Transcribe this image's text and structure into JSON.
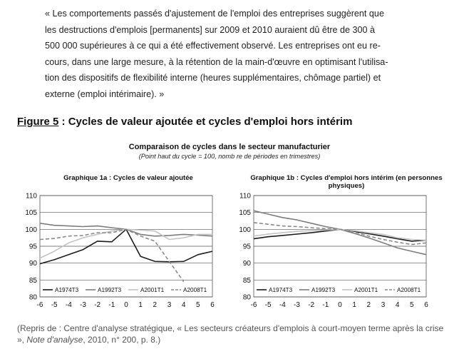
{
  "quote": {
    "lines": [
      "« Les comportements passés d'ajustement de l'emploi des entreprises suggèrent que",
      "les destructions d'emplois [permanents] sur 2009 et 2010 auraient dû être de 300 à",
      "500 000 supérieures à ce qui a été effectivement observé. Les entreprises ont eu re-",
      "cours, dans une large mesure, à la rétention de la main-d'œuvre en optimisant l'utilisa-",
      "tion des dispositifs de flexibilité interne (heures supplémentaires, chômage partiel) et",
      "externe (emploi intérimaire). »"
    ]
  },
  "figure": {
    "label": "Figure 5",
    "title": " : Cycles de valeur ajoutée et cycles d'emploi hors intérim"
  },
  "section": {
    "title": "Comparaison de cycles dans le secteur manufacturier",
    "subtitle": "(Point haut du cycle = 100, nomb re de périodes en trimestres)"
  },
  "colors": {
    "A1974T3": "#1c1c1c",
    "A1992T3": "#7d7d7d",
    "A2001T1": "#c4c4c4",
    "A2008T1": "#8a8a8a"
  },
  "chart_data": [
    {
      "type": "line",
      "title": "Graphique 1a : Cycles de valeur ajoutée",
      "x": [
        -6,
        -5,
        -4,
        -3,
        -2,
        -1,
        0,
        1,
        2,
        3,
        4,
        5,
        6
      ],
      "xlim": [
        -6,
        6
      ],
      "ylim": [
        80,
        110
      ],
      "yticks": [
        80,
        85,
        90,
        95,
        100,
        105,
        110
      ],
      "grid": true,
      "legend": "bottom",
      "series": [
        {
          "name": "A1974T3",
          "dash": "solid",
          "values": [
            89.8,
            91,
            92.5,
            94,
            96.5,
            96.3,
            100,
            92,
            90.5,
            90.4,
            90.5,
            92.5,
            93.5
          ]
        },
        {
          "name": "A1992T3",
          "dash": "solid",
          "values": [
            101.8,
            101.2,
            101,
            100.8,
            101,
            100.5,
            100,
            98.5,
            98,
            98.2,
            98.5,
            98.3,
            98
          ]
        },
        {
          "name": "A2001T1",
          "dash": "solid",
          "values": [
            91.5,
            93.5,
            96,
            97.5,
            98.5,
            99.5,
            100,
            99.8,
            99.5,
            97,
            97.5,
            98.5,
            98.5
          ]
        },
        {
          "name": "A2008T1",
          "dash": "dashed",
          "values": [
            97,
            97.3,
            98,
            98.2,
            99,
            99,
            100,
            98,
            96.5,
            90.5,
            84.5,
            null,
            null
          ]
        }
      ]
    },
    {
      "type": "line",
      "title": "Graphique 1b : Cycles d'emploi hors intérim (en personnes physiques)",
      "x": [
        -6,
        -5,
        -4,
        -3,
        -2,
        -1,
        0,
        1,
        2,
        3,
        4,
        5,
        6
      ],
      "xlim": [
        -6,
        6
      ],
      "ylim": [
        80,
        110
      ],
      "yticks": [
        80,
        85,
        90,
        95,
        100,
        105,
        110
      ],
      "grid": true,
      "legend": "bottom",
      "series": [
        {
          "name": "A1974T3",
          "dash": "solid",
          "values": [
            97.2,
            97.8,
            98.2,
            98.6,
            99,
            99.5,
            100,
            99.4,
            98.7,
            98,
            97.2,
            96.5,
            96.8
          ]
        },
        {
          "name": "A1992T3",
          "dash": "solid",
          "values": [
            105.5,
            104.5,
            103.5,
            102.8,
            101.8,
            100.8,
            100,
            98.8,
            97.5,
            96,
            94.5,
            93.5,
            92.5
          ]
        },
        {
          "name": "A2001T1",
          "dash": "solid",
          "values": [
            98,
            98.6,
            99,
            99.4,
            99.6,
            99.8,
            100,
            99.6,
            99,
            98.5,
            97.5,
            97,
            96.8
          ]
        },
        {
          "name": "A2008T1",
          "dash": "dashed",
          "values": [
            102,
            101.5,
            101,
            100.8,
            100.5,
            100.2,
            100,
            99.2,
            98,
            97,
            96.2,
            95.5,
            96
          ]
        }
      ]
    }
  ],
  "caption": {
    "prefix": "(Repris de : Centre d'analyse stratégique, « Les secteurs créateurs d'emplois à court-moyen terme après la crise », ",
    "source_italic": "Note d'analyse",
    "suffix": ", 2010, n° 200, p. 8.)"
  }
}
